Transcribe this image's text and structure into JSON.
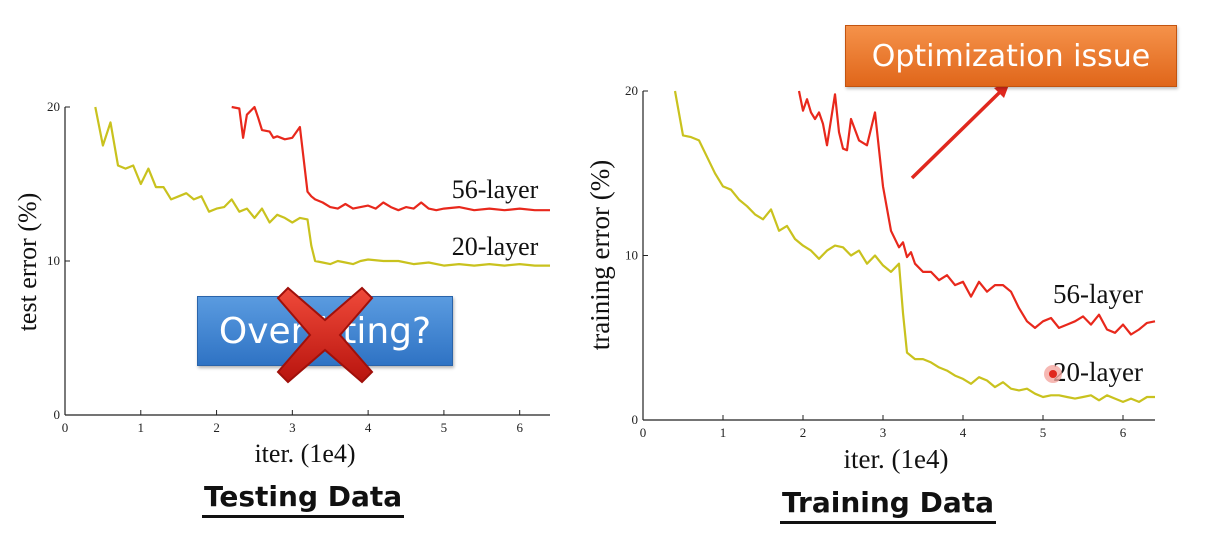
{
  "chart_data": [
    {
      "type": "line",
      "title": "",
      "xlabel": "iter. (1e4)",
      "ylabel": "test error (%)",
      "xlim": [
        0,
        6.4
      ],
      "ylim": [
        0,
        20
      ],
      "xticks": [
        "0",
        "1",
        "2",
        "3",
        "4",
        "5",
        "6"
      ],
      "yticks": [
        "0",
        "10",
        "20"
      ],
      "grid": false,
      "series": [
        {
          "name": "56-layer",
          "color": "#e8281c",
          "x": [
            2.2,
            2.3,
            2.35,
            2.4,
            2.5,
            2.55,
            2.6,
            2.7,
            2.75,
            2.8,
            2.9,
            3.0,
            3.1,
            3.2,
            3.25,
            3.3,
            3.4,
            3.5,
            3.6,
            3.7,
            3.8,
            3.9,
            4.0,
            4.1,
            4.2,
            4.3,
            4.4,
            4.5,
            4.6,
            4.7,
            4.8,
            4.9,
            5.0,
            5.2,
            5.4,
            5.6,
            5.8,
            6.0,
            6.2,
            6.4
          ],
          "y": [
            20.0,
            19.9,
            18.0,
            19.5,
            20.0,
            19.3,
            18.5,
            18.4,
            18.0,
            18.1,
            17.9,
            18.0,
            18.7,
            14.5,
            14.2,
            14.0,
            13.8,
            13.5,
            13.4,
            13.7,
            13.4,
            13.5,
            13.6,
            13.4,
            13.8,
            13.5,
            13.3,
            13.5,
            13.4,
            13.8,
            13.4,
            13.3,
            13.4,
            13.5,
            13.3,
            13.4,
            13.3,
            13.4,
            13.3,
            13.3
          ]
        },
        {
          "name": "20-layer",
          "color": "#c9c21e",
          "x": [
            0.4,
            0.5,
            0.6,
            0.7,
            0.8,
            0.9,
            1.0,
            1.1,
            1.2,
            1.3,
            1.4,
            1.5,
            1.6,
            1.7,
            1.8,
            1.9,
            2.0,
            2.1,
            2.2,
            2.3,
            2.4,
            2.5,
            2.6,
            2.7,
            2.8,
            2.9,
            3.0,
            3.1,
            3.2,
            3.25,
            3.3,
            3.4,
            3.5,
            3.6,
            3.7,
            3.8,
            3.9,
            4.0,
            4.2,
            4.4,
            4.6,
            4.8,
            5.0,
            5.2,
            5.4,
            5.6,
            5.8,
            6.0,
            6.2,
            6.4
          ],
          "y": [
            20.0,
            17.5,
            19.0,
            16.2,
            16.0,
            16.2,
            15.0,
            16.0,
            14.8,
            14.8,
            14.0,
            14.2,
            14.4,
            14.0,
            14.2,
            13.2,
            13.4,
            13.5,
            14.0,
            13.2,
            13.4,
            12.8,
            13.4,
            12.5,
            13.0,
            12.8,
            12.5,
            12.8,
            12.7,
            11.0,
            10.0,
            9.9,
            9.8,
            10.0,
            9.9,
            9.8,
            10.0,
            10.1,
            10.0,
            10.0,
            9.8,
            9.9,
            9.7,
            9.8,
            9.7,
            9.8,
            9.7,
            9.8,
            9.7,
            9.7
          ]
        }
      ]
    },
    {
      "type": "line",
      "title": "",
      "xlabel": "iter. (1e4)",
      "ylabel": "training error (%)",
      "xlim": [
        0,
        6.4
      ],
      "ylim": [
        0,
        20
      ],
      "xticks": [
        "0",
        "1",
        "2",
        "3",
        "4",
        "5",
        "6"
      ],
      "yticks": [
        "0",
        "10",
        "20"
      ],
      "grid": false,
      "series": [
        {
          "name": "56-layer",
          "color": "#e8281c",
          "x": [
            1.95,
            2.0,
            2.05,
            2.1,
            2.15,
            2.2,
            2.25,
            2.3,
            2.4,
            2.45,
            2.5,
            2.55,
            2.6,
            2.7,
            2.8,
            2.9,
            3.0,
            3.1,
            3.2,
            3.25,
            3.3,
            3.35,
            3.4,
            3.5,
            3.6,
            3.7,
            3.8,
            3.9,
            4.0,
            4.1,
            4.2,
            4.3,
            4.4,
            4.5,
            4.6,
            4.7,
            4.8,
            4.9,
            5.0,
            5.1,
            5.2,
            5.3,
            5.4,
            5.5,
            5.6,
            5.7,
            5.8,
            5.9,
            6.0,
            6.1,
            6.2,
            6.3,
            6.4
          ],
          "y": [
            20.0,
            18.8,
            19.5,
            18.7,
            18.3,
            18.7,
            18.0,
            16.7,
            19.8,
            17.5,
            16.5,
            16.4,
            18.3,
            17.0,
            16.7,
            18.7,
            14.2,
            11.5,
            10.5,
            10.8,
            9.9,
            10.2,
            9.5,
            9.0,
            9.0,
            8.5,
            8.8,
            8.2,
            8.4,
            7.5,
            8.4,
            7.8,
            8.2,
            8.2,
            7.8,
            6.8,
            6.0,
            5.6,
            6.0,
            6.2,
            5.6,
            5.8,
            6.0,
            6.3,
            5.8,
            6.4,
            5.5,
            5.3,
            5.8,
            5.2,
            5.5,
            5.9,
            6.0
          ]
        },
        {
          "name": "20-layer",
          "color": "#c9c21e",
          "x": [
            0.4,
            0.5,
            0.6,
            0.7,
            0.8,
            0.9,
            1.0,
            1.1,
            1.2,
            1.3,
            1.4,
            1.5,
            1.6,
            1.7,
            1.8,
            1.9,
            2.0,
            2.1,
            2.2,
            2.3,
            2.4,
            2.5,
            2.6,
            2.7,
            2.8,
            2.9,
            3.0,
            3.1,
            3.2,
            3.25,
            3.3,
            3.4,
            3.5,
            3.6,
            3.7,
            3.8,
            3.9,
            4.0,
            4.1,
            4.2,
            4.3,
            4.4,
            4.5,
            4.6,
            4.7,
            4.8,
            4.9,
            5.0,
            5.1,
            5.2,
            5.3,
            5.4,
            5.5,
            5.6,
            5.7,
            5.8,
            5.9,
            6.0,
            6.1,
            6.2,
            6.3,
            6.4
          ],
          "y": [
            20.0,
            17.3,
            17.2,
            17.0,
            16.0,
            15.0,
            14.2,
            14.0,
            13.4,
            13.0,
            12.5,
            12.2,
            12.8,
            11.5,
            11.8,
            11.0,
            10.6,
            10.3,
            9.8,
            10.3,
            10.6,
            10.5,
            10.0,
            10.3,
            9.5,
            10.0,
            9.4,
            9.0,
            9.5,
            6.5,
            4.1,
            3.7,
            3.7,
            3.5,
            3.2,
            3.0,
            2.7,
            2.5,
            2.2,
            2.6,
            2.4,
            2.0,
            2.3,
            1.9,
            1.8,
            1.9,
            1.6,
            1.4,
            1.5,
            1.5,
            1.4,
            1.3,
            1.4,
            1.5,
            1.2,
            1.5,
            1.3,
            1.1,
            1.3,
            1.1,
            1.4,
            1.4
          ]
        }
      ]
    }
  ],
  "captions": {
    "left": "Testing Data",
    "right": "Training Data"
  },
  "callouts": {
    "optimization": "Optimization issue",
    "overfitting": "Overfitting?"
  },
  "colors": {
    "orange_callout": "#ee7a2e",
    "blue_callout": "#3d82d0",
    "x_mark": "#d8211a",
    "arrow": "#e0281e"
  },
  "icons": {
    "cross": "x-mark-icon",
    "arrow": "arrow-icon"
  }
}
